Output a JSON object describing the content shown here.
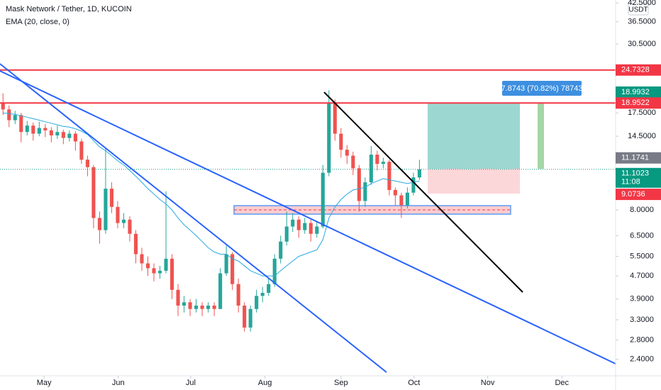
{
  "chart_data": {
    "type": "candlestick",
    "title": "Mask Network / Tether, 1D, KUCOIN",
    "indicator": "EMA (20, close, 0)",
    "currency": "USDT",
    "log_scale": true,
    "up_color": "#26a69a",
    "down_color": "#ef5350",
    "ema_color": "#2aa9e0",
    "open": [
      19.0,
      18.0,
      16.5,
      17.2,
      15.0,
      15.8,
      14.8,
      15.5,
      15.2,
      14.6,
      15.0,
      14.3,
      14.8,
      13.9,
      12.0,
      11.3,
      7.5,
      6.8,
      9.5,
      8.2,
      7.2,
      7.4,
      6.6,
      5.6,
      5.2,
      5.0,
      4.8,
      4.9,
      5.4,
      4.2,
      3.7,
      3.8,
      3.6,
      3.7,
      3.6,
      3.7,
      3.6,
      4.8,
      5.6,
      4.4,
      3.7,
      3.1,
      3.6,
      4.0,
      4.1,
      4.4,
      5.4,
      6.2,
      7.0,
      7.4,
      6.8,
      7.2,
      6.6,
      7.0,
      10.8,
      19.0,
      14.8,
      13.0,
      12.4,
      11.2,
      8.6,
      10.0,
      12.5,
      11.6,
      11.8,
      9.4,
      9.0,
      8.3,
      9.2,
      10.4
    ],
    "high": [
      20.5,
      18.6,
      17.8,
      17.5,
      16.4,
      16.2,
      16.3,
      16.0,
      15.6,
      15.8,
      15.3,
      15.2,
      15.1,
      14.2,
      12.4,
      11.5,
      7.9,
      13.2,
      10.0,
      8.6,
      7.8,
      7.6,
      6.8,
      5.9,
      5.5,
      5.2,
      5.1,
      9.3,
      5.6,
      4.4,
      4.0,
      3.9,
      3.9,
      3.8,
      3.8,
      3.8,
      5.0,
      6.0,
      5.7,
      4.6,
      3.8,
      3.7,
      4.2,
      4.3,
      4.6,
      5.6,
      6.5,
      7.9,
      7.8,
      7.6,
      7.5,
      7.4,
      7.3,
      11.5,
      21.0,
      19.5,
      15.5,
      13.5,
      12.8,
      11.5,
      10.4,
      13.4,
      12.9,
      12.2,
      12.0,
      9.6,
      9.2,
      9.6,
      10.8,
      12.0
    ],
    "low": [
      17.2,
      15.6,
      16.0,
      13.8,
      14.6,
      14.0,
      14.5,
      14.4,
      13.8,
      14.2,
      13.6,
      13.9,
      12.9,
      11.6,
      10.5,
      6.9,
      6.1,
      6.6,
      7.8,
      6.9,
      6.9,
      6.2,
      5.2,
      4.9,
      4.7,
      4.5,
      4.6,
      4.8,
      3.9,
      3.4,
      3.5,
      3.4,
      3.5,
      3.4,
      3.5,
      3.4,
      3.6,
      4.7,
      4.2,
      3.5,
      3.0,
      3.0,
      3.5,
      3.8,
      4.0,
      4.3,
      5.2,
      6.0,
      6.7,
      6.4,
      6.6,
      6.2,
      6.4,
      6.9,
      10.5,
      14.0,
      12.2,
      11.6,
      10.6,
      7.9,
      8.2,
      9.8,
      11.0,
      11.2,
      9.0,
      8.3,
      7.5,
      8.1,
      9.0,
      10.2
    ],
    "close": [
      18.0,
      16.5,
      17.2,
      15.0,
      15.8,
      14.8,
      15.5,
      15.2,
      14.6,
      15.0,
      14.3,
      14.8,
      13.9,
      12.0,
      11.3,
      7.5,
      6.8,
      9.5,
      8.2,
      7.2,
      7.4,
      6.6,
      5.6,
      5.2,
      5.0,
      4.8,
      4.9,
      5.4,
      4.2,
      3.7,
      3.8,
      3.6,
      3.7,
      3.6,
      3.7,
      3.6,
      4.8,
      5.6,
      4.4,
      3.7,
      3.1,
      3.6,
      4.0,
      4.1,
      4.4,
      5.4,
      6.2,
      7.0,
      7.4,
      6.8,
      7.2,
      6.6,
      7.0,
      10.8,
      19.0,
      14.8,
      13.0,
      12.4,
      11.2,
      8.6,
      10.0,
      12.5,
      11.6,
      11.8,
      9.4,
      9.0,
      8.3,
      9.2,
      10.4,
      11.1
    ],
    "ema": [
      17.5,
      17.4,
      17.3,
      17.1,
      16.9,
      16.7,
      16.5,
      16.3,
      16.1,
      15.9,
      15.7,
      15.6,
      15.4,
      15.1,
      14.7,
      14.0,
      13.3,
      12.9,
      12.4,
      11.9,
      11.5,
      11.0,
      10.5,
      10.0,
      9.5,
      9.1,
      8.7,
      8.4,
      8.0,
      7.5,
      7.1,
      6.8,
      6.5,
      6.2,
      5.9,
      5.7,
      5.6,
      5.6,
      5.4,
      5.3,
      5.1,
      4.9,
      4.8,
      4.7,
      4.7,
      4.7,
      4.9,
      5.1,
      5.3,
      5.5,
      5.6,
      5.7,
      5.8,
      6.3,
      7.5,
      8.2,
      8.7,
      9.1,
      9.4,
      9.5,
      9.6,
      9.9,
      10.1,
      10.3,
      10.2,
      10.1,
      10.0,
      9.9,
      10.0,
      10.1
    ],
    "xlim": [
      0,
      102
    ],
    "xticks": [
      {
        "value": 7.3,
        "label": "May"
      },
      {
        "value": 19.6,
        "label": "Jun"
      },
      {
        "value": 31.6,
        "label": "Jul"
      },
      {
        "value": 43.9,
        "label": "Aug"
      },
      {
        "value": 56.5,
        "label": "Sep"
      },
      {
        "value": 68.6,
        "label": "Oct"
      },
      {
        "value": 80.8,
        "label": "Nov"
      },
      {
        "value": 93.1,
        "label": "Dec"
      }
    ],
    "ylim": [
      2.1,
      43.5
    ],
    "yticks": [
      {
        "value": 2.4,
        "label": "2.4000"
      },
      {
        "value": 2.8,
        "label": "2.8000"
      },
      {
        "value": 3.3,
        "label": "3.3000"
      },
      {
        "value": 3.9,
        "label": "3.9000"
      },
      {
        "value": 4.7,
        "label": "4.7000"
      },
      {
        "value": 5.5,
        "label": "5.5000"
      },
      {
        "value": 6.5,
        "label": "6.5000"
      },
      {
        "value": 8,
        "label": "8.0000"
      },
      {
        "value": 14.5,
        "label": "14.5000"
      },
      {
        "value": 17.5,
        "label": "17.5000"
      },
      {
        "value": 30.5,
        "label": "30.5000"
      },
      {
        "value": 36.5,
        "label": "36.5000"
      },
      {
        "value": 42.5,
        "label": "42.5000"
      }
    ],
    "price_labels": [
      {
        "value": 24.7328,
        "color": "#f23645"
      },
      {
        "value": 18.9932,
        "color": "#089981"
      },
      {
        "value": 18.9522,
        "color": "#f23645"
      },
      {
        "value": 11.1741,
        "color": "#787b86"
      },
      {
        "value": 11.1023,
        "color": "#089981"
      },
      {
        "value": 9.0736,
        "color": "#f23645"
      }
    ],
    "countdown": "11:08",
    "measure_label": "7.8743 (70.82%) 78743"
  }
}
